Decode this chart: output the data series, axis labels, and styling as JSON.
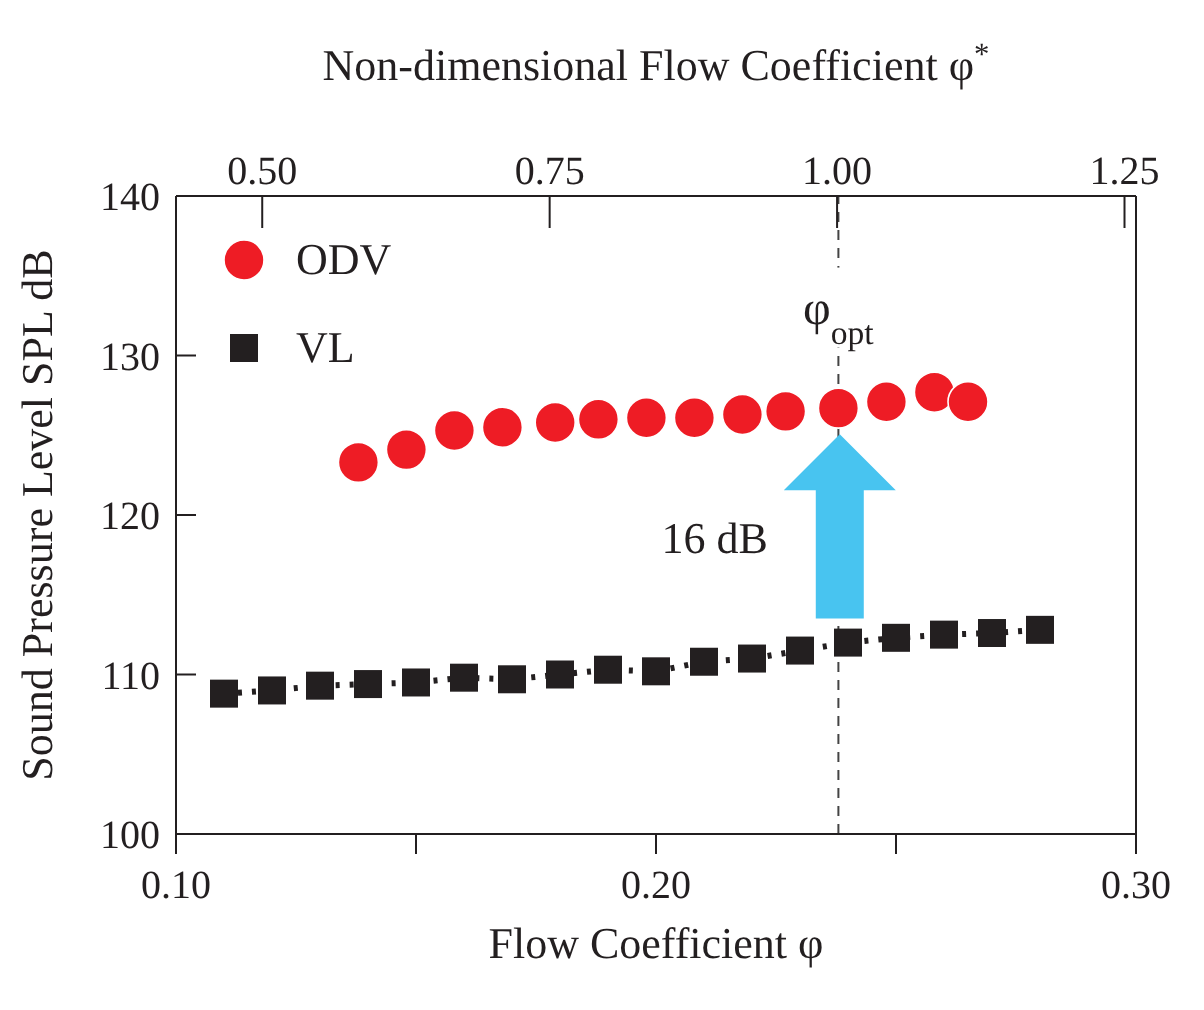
{
  "chart_data": {
    "type": "scatter",
    "xlabel": "Flow Coefficient φ",
    "ylabel": "Sound Pressure Level SPL dB",
    "x2label": "Non-dimensional Flow Coefficient φ$^{*}$",
    "xlim": [
      0.1,
      0.3
    ],
    "xticks": [
      {
        "value": 0.1,
        "label": "0.10"
      },
      {
        "value": 0.15,
        "label": null
      },
      {
        "value": 0.2,
        "label": "0.20"
      },
      {
        "value": 0.25,
        "label": null
      },
      {
        "value": 0.3,
        "label": "0.30"
      }
    ],
    "x2lim": [
      0.425,
      1.26
    ],
    "x2ticks": [
      {
        "value": 0.5,
        "label": "0.50"
      },
      0.75,
      {
        "value": 1.0,
        "label": "1.00"
      },
      1.25
    ],
    "ylim": [
      100,
      140
    ],
    "yticks": [
      100,
      110,
      120,
      130,
      140
    ],
    "series": [
      {
        "name": "ODV",
        "type": "scatter",
        "marker": "circle",
        "color": "#ee1c25",
        "x": [
          0.138,
          0.148,
          0.158,
          0.168,
          0.179,
          0.188,
          0.198,
          0.208,
          0.218,
          0.227,
          0.238,
          0.248,
          0.258,
          0.265
        ],
        "values": [
          123.3,
          124.1,
          125.3,
          125.5,
          125.8,
          126.0,
          126.1,
          126.1,
          126.3,
          126.5,
          126.7,
          127.1,
          127.7,
          127.1
        ]
      },
      {
        "name": "VL",
        "type": "line",
        "marker": "square",
        "line_style": "dotted",
        "color": "#231f20",
        "x": [
          0.11,
          0.12,
          0.13,
          0.14,
          0.15,
          0.16,
          0.17,
          0.18,
          0.19,
          0.2,
          0.21,
          0.22,
          0.23,
          0.24,
          0.25,
          0.26,
          0.27,
          0.28
        ],
        "values": [
          108.8,
          109.0,
          109.3,
          109.4,
          109.5,
          109.8,
          109.7,
          110.0,
          110.3,
          110.2,
          110.8,
          111.0,
          111.5,
          112.0,
          112.3,
          112.5,
          112.6,
          112.8
        ]
      }
    ],
    "ref_lines": [
      {
        "axis": "x",
        "value": 0.238,
        "label": "φ$_{opt}$",
        "line_style": "dashed",
        "color": "#444444"
      }
    ],
    "annotations": [
      "16 dB"
    ],
    "grid": false,
    "legend": "top left"
  }
}
